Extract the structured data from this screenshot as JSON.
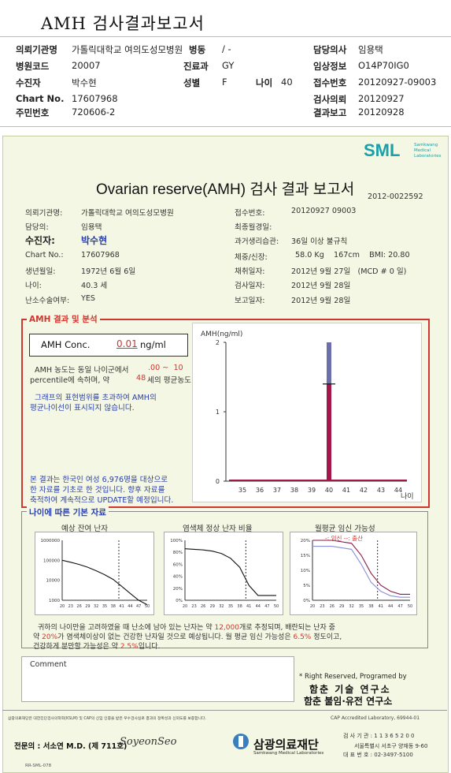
{
  "header": {
    "title": "AMH 검사결과보고서",
    "hospital_label": "의뢰기관명",
    "hospital": "가톨릭대학교 여의도성모병원",
    "ward_label": "병동",
    "ward": "/ -",
    "doctor_label": "담당의사",
    "doctor": "임용택",
    "hospital_code_label": "병원코드",
    "hospital_code": "20007",
    "dept_label": "진료과",
    "dept": "GY",
    "clinical_label": "임상정보",
    "clinical": "O14P70IG0",
    "patient_label": "수진자",
    "patient": "박수현",
    "sex_label": "성별",
    "sex": "F",
    "age_label": "나이",
    "age": "40",
    "receipt_label": "접수번호",
    "receipt": "20120927-09003",
    "chart_label": "Chart No.",
    "chart": "17607968",
    "test_req_label": "검사의뢰",
    "test_req": "20120927",
    "rrn_label": "주민번호",
    "rrn": "720606-2",
    "result_label": "결과보고",
    "result": "20120928"
  },
  "report": {
    "logo": "SML",
    "logo_sub": [
      "Samkwang",
      "Medical",
      "Laboratories"
    ],
    "title": "Ovarian reserve(AMH) 검사 결과 보고서",
    "doc_no": "2012-0022592",
    "left_fields": [
      {
        "label": "의뢰기관명:",
        "value": "가톨릭대학교 여의도성모병원"
      },
      {
        "label": "담당의:",
        "value": "임용택"
      },
      {
        "label": "수진자:",
        "value": "박수현"
      },
      {
        "label": "Chart No.:",
        "value": "17607968"
      },
      {
        "label": "생년월일:",
        "value": "1972년 6월 6일"
      },
      {
        "label": "나이:",
        "value": "40.3 세"
      },
      {
        "label": "난소수술여부:",
        "value": "YES"
      }
    ],
    "right_fields": [
      {
        "label": "접수번호:",
        "value": "20120927 09003"
      },
      {
        "label": "최종월경일:",
        "value": ""
      },
      {
        "label": "과거생리습관:",
        "value": "36일 이상 불규칙"
      },
      {
        "label": "체중/신장:",
        "value": "58.0 Kg    167cm    BMI: 20.80"
      },
      {
        "label": "채취일자:",
        "value": "2012년 9월 27일   (MCD # 0 일)"
      },
      {
        "label": "검사일자:",
        "value": "2012년 9월 28일"
      },
      {
        "label": "보고일자:",
        "value": "2012년 9월 28일"
      }
    ],
    "amh_section_label": "AMH 결과 및 분석",
    "amh_conc_label": "AMH Conc.",
    "amh_conc_value": "0.01",
    "amh_conc_unit": "ng/ml",
    "interp_1": "AMH 농도는 동일 나이군에서",
    "interp_range": ".00 ~  10",
    "interp_2": "percentile에 속하며,  약",
    "interp_age": "48",
    "interp_3": "세의 평균농도 입니다.",
    "interp_4": "그래프의 표현범위를 초과하여 AMH의",
    "interp_5": "평균나이선이 표시되지 않습니다.",
    "note_1": "본 결과는 한국인 여성 6,976명을 대상으로",
    "note_2": "한 자료를 기초로 한 것입니다. 향후 자료를",
    "note_3": "축적하여 계속적으로 UPDATE할 예정입니다.",
    "basic_section_label": "나이에 따른 기본 자료",
    "mini_titles": [
      "예상 잔여 난자",
      "염색체 정상 난자 비율",
      "월평균 임신 가능성"
    ],
    "mini_legend": "-: 임신 --: 출산",
    "summary_1": "귀하의 나이만을 고려하였을 때 난소에 남아 있는 난자는 약",
    "summary_eggs": "12,000",
    "summary_2": "개로 추정되며, 배란되는 난자 중",
    "summary_3": "약",
    "summary_pct": "20%",
    "summary_4": "가 염색체이상이 없는 건강한 난자일 것으로 예상됩니다. 월 평균 임신 가능성은",
    "summary_preg": "6.5%",
    "summary_5": "정도이고,",
    "summary_6": "건강하게 분만할 가능성은 약",
    "summary_birth": "2.5%",
    "summary_7": "입니다.",
    "comment_label": "Comment",
    "rights": "* Right Reserved, Programed by",
    "org1": "함춘 기술 연구소",
    "org2": "함춘 불임·유전 연구소",
    "fine_print": "삼광의료재단은 대한진단검사의학회(KSLM) 및 CAP의 신임 인증을 받은 우수검사실로 결과의 정확성과 신뢰도를 보증합니다.",
    "cap": "CAP Accredited Laboratory, 69944-01",
    "specialist": "전문의 : 서소연 M.D. (제 711호)",
    "signature": "SoyeonSeo",
    "foundation": "삼광의료재단",
    "foundation_en": "Samkwang Medical Laboratories",
    "license": "검 사 기 관 : 1 1 3 6 5 2 0 0",
    "address": "서울특별시 서초구 양재동 9-60",
    "phone": "대 표 번 호 : 02-3497-5100",
    "form_code": "RR-SML-078"
  },
  "chart_data": [
    {
      "type": "bar",
      "title": "",
      "ylabel": "AMH(ng/ml)",
      "xlabel": "나이",
      "categories": [
        35,
        36,
        37,
        38,
        39,
        40,
        41,
        42,
        43,
        44
      ],
      "values": [
        0,
        0,
        0,
        0,
        0,
        0.01,
        0,
        0,
        0,
        0
      ],
      "ylim": [
        0,
        2
      ],
      "ytick_labels": [
        "0",
        "1",
        "2"
      ],
      "highlight_bar": {
        "x": 40,
        "range_high": 2.0,
        "mark": 1.4,
        "color_upper": "#6b6faa",
        "color_lower": "#a3174a"
      }
    },
    {
      "type": "line",
      "title": "예상 잔여 난자",
      "yscale": "log",
      "ytick_labels": [
        "1000000",
        "100000",
        "10000",
        "1000"
      ],
      "xtick_labels": [
        "20",
        "23",
        "26",
        "29",
        "32",
        "35",
        "38",
        "41",
        "44",
        "47",
        "50"
      ],
      "x": [
        20,
        23,
        26,
        29,
        32,
        35,
        38,
        41,
        44,
        47,
        50
      ],
      "y": [
        100000,
        80000,
        62000,
        45000,
        30000,
        19000,
        11000,
        5000,
        2200,
        1000,
        600
      ],
      "marker_x": 40
    },
    {
      "type": "line",
      "title": "염색체 정상 난자 비율",
      "ytick_labels": [
        "100%",
        "80%",
        "60%",
        "40%",
        "20%",
        "0%"
      ],
      "xtick_labels": [
        "20",
        "23",
        "26",
        "29",
        "32",
        "35",
        "38",
        "41",
        "44",
        "47",
        "50"
      ],
      "x": [
        20,
        23,
        26,
        29,
        32,
        35,
        38,
        41,
        44,
        47,
        50
      ],
      "y": [
        86,
        85,
        84,
        82,
        78,
        70,
        55,
        25,
        8,
        8,
        8
      ],
      "marker_x": 40
    },
    {
      "type": "line",
      "title": "월평균 임신 가능성",
      "ytick_labels": [
        "20%",
        "15%",
        "10%",
        "5%",
        "0%"
      ],
      "xtick_labels": [
        "20",
        "23",
        "26",
        "29",
        "32",
        "35",
        "38",
        "41",
        "44",
        "47",
        "50"
      ],
      "series": [
        {
          "name": "임신",
          "x": [
            20,
            26,
            32,
            35,
            38,
            41,
            44,
            47,
            50
          ],
          "y": [
            20,
            20,
            19,
            15,
            9,
            5,
            3,
            2,
            2
          ]
        },
        {
          "name": "출산",
          "x": [
            20,
            26,
            32,
            35,
            38,
            41,
            44,
            47,
            50
          ],
          "y": [
            18,
            18,
            17,
            12,
            6,
            3,
            1.5,
            1,
            1
          ]
        }
      ],
      "marker_x": 40
    }
  ],
  "colors": {
    "accent_red": "#d3342f",
    "accent_blue": "#2a3fa8",
    "logo_teal": "#1aa0a8",
    "report_bg": "#f4f7e3"
  }
}
